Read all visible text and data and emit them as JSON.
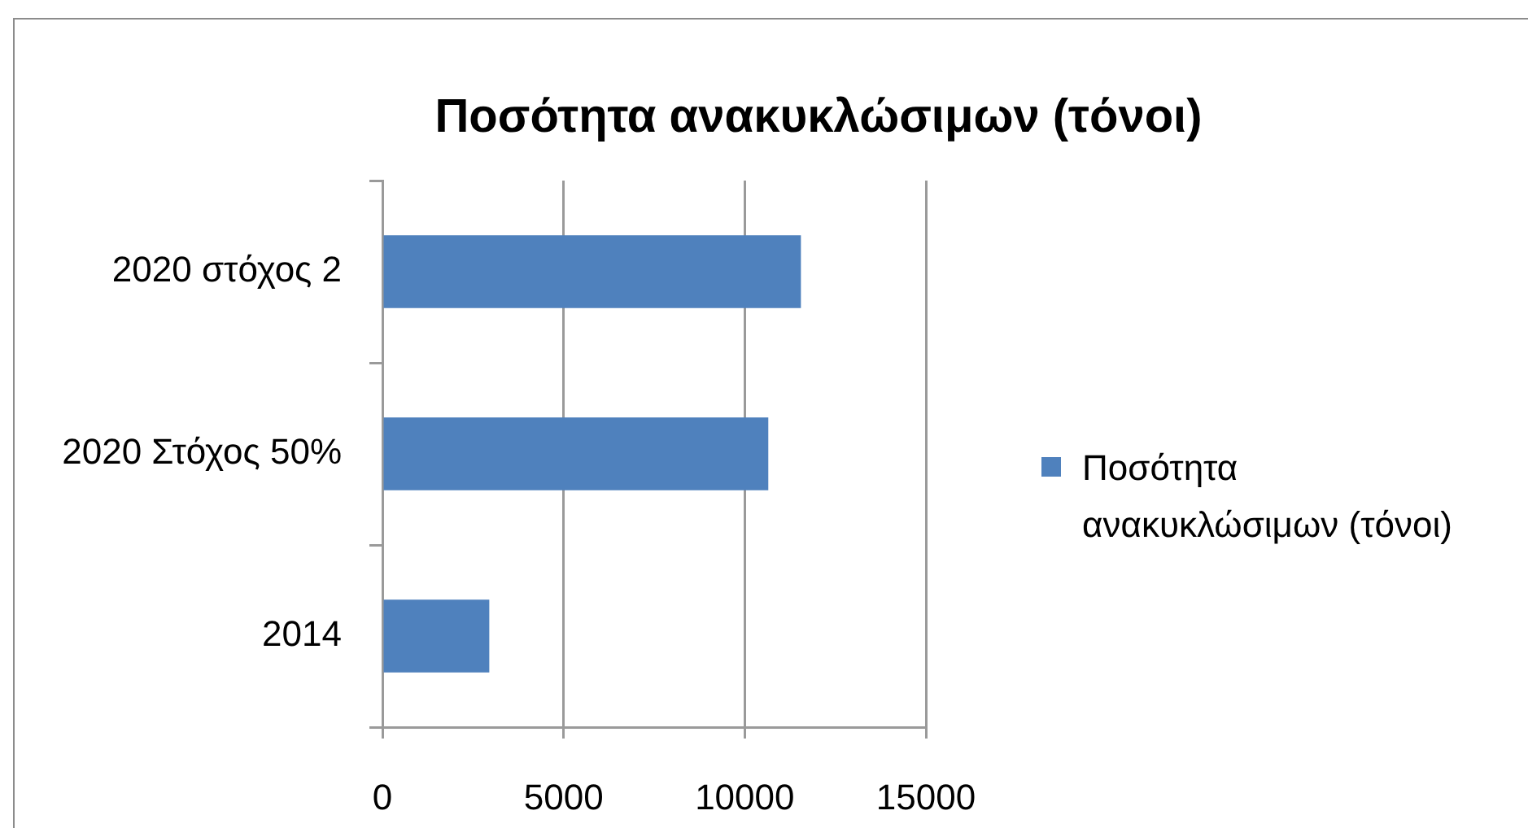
{
  "chart_data": {
    "type": "bar",
    "orientation": "horizontal",
    "title": "Ποσότητα ανακυκλώσιμων (τόνοι)",
    "categories": [
      "2020 στόχος 2",
      "2020 Στόχος 50%",
      "2014"
    ],
    "series": [
      {
        "name": "Ποσότητα ανακυκλώσιμων (τόνοι)",
        "color": "#4f81bd",
        "values": [
          11550,
          10650,
          2950
        ]
      }
    ],
    "xlim": [
      0,
      15000
    ],
    "xticks": [
      0,
      5000,
      10000,
      15000
    ],
    "grid": "x",
    "legend": "right"
  }
}
